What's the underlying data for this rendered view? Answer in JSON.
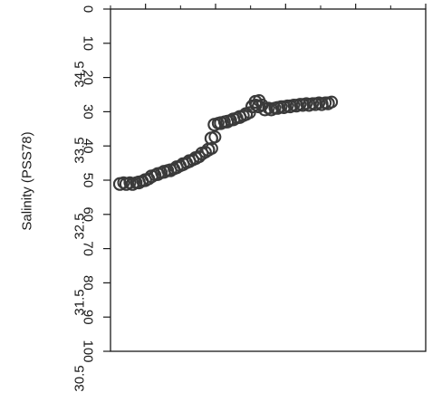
{
  "chart_data": {
    "type": "scatter",
    "title": "",
    "ylabel": "Salinity (PSS78)",
    "xlabel": "",
    "orientation": "rotated-90-clockwise",
    "xlim": [
      0,
      100
    ],
    "ylim": [
      30.5,
      35.0
    ],
    "x_ticks": [
      "0",
      "10",
      "20",
      "30",
      "40",
      "50",
      "60",
      "70",
      "80",
      "90",
      "100"
    ],
    "y_ticks": [
      "30.5",
      "31.5",
      "32.5",
      "33.5",
      "34.5"
    ],
    "grid": false,
    "marker_color": "#3a3a3a",
    "x": [
      3,
      5,
      7,
      9,
      11,
      13,
      15,
      17,
      19,
      21,
      23,
      25,
      27,
      29,
      31,
      32,
      33,
      35,
      37,
      39,
      41,
      43,
      45,
      46,
      47,
      49,
      51,
      53,
      55,
      57,
      59,
      61,
      63,
      65,
      67,
      69
    ],
    "y": [
      32.7,
      32.7,
      32.7,
      32.72,
      32.75,
      32.8,
      32.83,
      32.86,
      32.88,
      32.92,
      32.96,
      33.0,
      33.04,
      33.1,
      33.15,
      33.3,
      33.48,
      33.5,
      33.52,
      33.55,
      33.58,
      33.62,
      33.72,
      33.78,
      33.72,
      33.68,
      33.68,
      33.7,
      33.71,
      33.72,
      33.73,
      33.74,
      33.74,
      33.75,
      33.75,
      33.76
    ]
  }
}
